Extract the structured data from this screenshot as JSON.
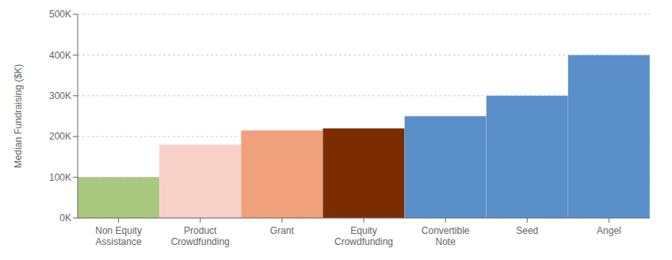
{
  "chart_data": {
    "type": "bar",
    "categories": [
      "Non Equity\nAssistance",
      "Product\nCrowdfunding",
      "Grant",
      "Equity\nCrowdfunding",
      "Convertible\nNote",
      "Seed",
      "Angel"
    ],
    "values": [
      100000,
      180000,
      215000,
      220000,
      250000,
      300000,
      400000
    ],
    "colors": [
      "#a8c97f",
      "#f7d0c8",
      "#f0a07a",
      "#7b2d00",
      "#5b8fc9",
      "#5b8fc9",
      "#5b8fc9"
    ],
    "ylabel": "Median Fundraising ($K)",
    "ylim": [
      0,
      500000
    ],
    "yticks": [
      {
        "value": 0,
        "label": "0K"
      },
      {
        "value": 100000,
        "label": "100K"
      },
      {
        "value": 200000,
        "label": "200K"
      },
      {
        "value": 300000,
        "label": "300K"
      },
      {
        "value": 400000,
        "label": "400K"
      },
      {
        "value": 500000,
        "label": "500K"
      }
    ],
    "grid": true
  }
}
